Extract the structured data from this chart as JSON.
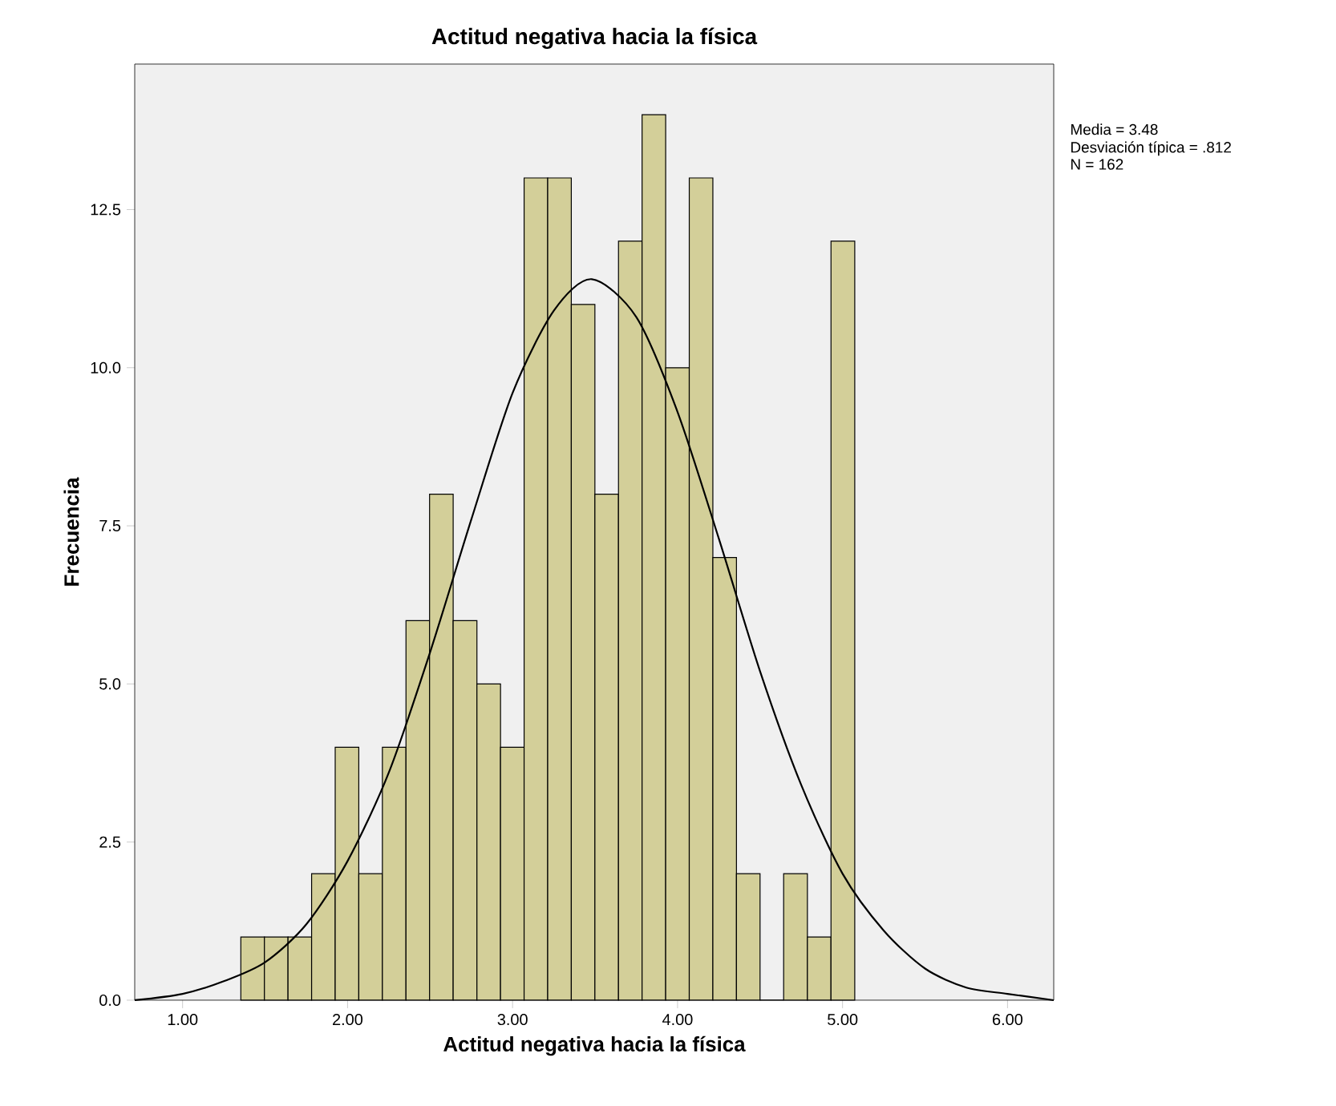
{
  "chart_data": {
    "type": "histogram",
    "title": "Actitud negativa hacia la física",
    "xlabel": "Actitud negativa hacia la física",
    "ylabel": "Frecuencia",
    "annotations": [
      "Media = 3.48",
      "Desviación típica = .812",
      "N = 162"
    ],
    "series": [
      {
        "color": "#d3cf99",
        "bins": [
          1.353,
          1.496,
          1.639,
          1.782,
          1.925,
          2.068,
          2.211,
          2.354,
          2.497,
          2.64,
          2.784,
          2.927,
          3.07,
          3.213,
          3.356,
          3.499,
          3.642,
          3.785,
          3.928,
          4.071,
          4.214,
          4.357,
          4.5,
          4.643,
          4.787,
          4.93,
          5.074
        ],
        "values": [
          1,
          1,
          1,
          2,
          4,
          2,
          4,
          6,
          8,
          6,
          5,
          4,
          13,
          13,
          11,
          8,
          12,
          14,
          10,
          13,
          7,
          2,
          0,
          2,
          1,
          12
        ]
      },
      {
        "type": "line",
        "color": "#000000",
        "x": [
          0.71,
          1.0,
          1.25,
          1.5,
          1.75,
          2.0,
          2.25,
          2.5,
          2.75,
          3.0,
          3.25,
          3.48,
          3.75,
          4.0,
          4.25,
          4.5,
          4.75,
          5.0,
          5.25,
          5.5,
          5.75,
          6.0,
          6.28
        ],
        "values": [
          0.0,
          0.1,
          0.3,
          0.6,
          1.2,
          2.2,
          3.6,
          5.5,
          7.6,
          9.6,
          10.9,
          11.4,
          10.8,
          9.3,
          7.3,
          5.2,
          3.4,
          2.0,
          1.1,
          0.5,
          0.2,
          0.1,
          0.0
        ]
      }
    ],
    "xlim": [
      0.71,
      6.28
    ],
    "ylim": [
      0,
      14.8
    ],
    "xticks": [
      {
        "value": 1,
        "label": "1.00"
      },
      {
        "value": 2,
        "label": "2.00"
      },
      {
        "value": 3,
        "label": "3.00"
      },
      {
        "value": 4,
        "label": "4.00"
      },
      {
        "value": 5,
        "label": "5.00"
      },
      {
        "value": 6,
        "label": "6.00"
      }
    ],
    "yticks": [
      {
        "value": 0,
        "label": "0.0"
      },
      {
        "value": 2.5,
        "label": "2.5"
      },
      {
        "value": 5,
        "label": "5.0"
      },
      {
        "value": 7.5,
        "label": "7.5"
      },
      {
        "value": 10,
        "label": "10.0"
      },
      {
        "value": 12.5,
        "label": "12.5"
      }
    ],
    "marker": "none",
    "line_style": "solid"
  }
}
